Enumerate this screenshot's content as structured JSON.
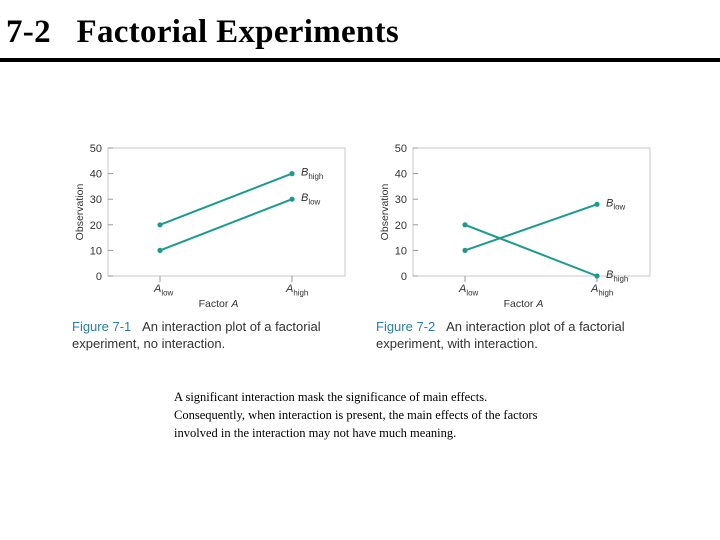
{
  "slide": {
    "title": "7-2   Factorial Experiments",
    "body_lines": [
      "A significant interaction mask the significance of main effects.",
      "Consequently, when interaction is present, the main effects of the factors",
      "involved in the interaction may not have much meaning."
    ]
  },
  "colors": {
    "series": "#1a9c8a",
    "grid": "#c8c8c8",
    "text": "#333333",
    "figure_label": "#2b7fa6"
  },
  "chart_data": [
    {
      "type": "line",
      "caption_label": "Figure 7-1",
      "caption_text_1": "An interaction plot of a factorial",
      "caption_text_2": "experiment, no interaction.",
      "xlabel": "Factor A",
      "ylabel": "Observation",
      "ylim": [
        0,
        50
      ],
      "y_ticks": [
        0,
        10,
        20,
        30,
        40,
        50
      ],
      "y_tick_labels": [
        "0",
        "10",
        "20",
        "30",
        "40",
        "50"
      ],
      "categories": [
        {
          "base": "A",
          "sub": "low"
        },
        {
          "base": "A",
          "sub": "high"
        }
      ],
      "series": [
        {
          "name_base": "B",
          "name_sub": "high",
          "values": [
            20,
            40
          ]
        },
        {
          "name_base": "B",
          "name_sub": "low",
          "values": [
            10,
            30
          ]
        }
      ]
    },
    {
      "type": "line",
      "caption_label": "Figure 7-2",
      "caption_text_1": "An interaction plot of a factorial",
      "caption_text_2": "experiment, with interaction.",
      "xlabel": "Factor A",
      "ylabel": "Observation",
      "ylim": [
        0,
        50
      ],
      "y_ticks": [
        0,
        10,
        20,
        30,
        40,
        50
      ],
      "y_tick_labels": [
        "0",
        "10",
        "20",
        "30",
        "40",
        "50"
      ],
      "categories": [
        {
          "base": "A",
          "sub": "low"
        },
        {
          "base": "A",
          "sub": "high"
        }
      ],
      "series": [
        {
          "name_base": "B",
          "name_sub": "low",
          "values": [
            10,
            28
          ]
        },
        {
          "name_base": "B",
          "name_sub": "high",
          "values": [
            20,
            0
          ]
        }
      ]
    }
  ]
}
